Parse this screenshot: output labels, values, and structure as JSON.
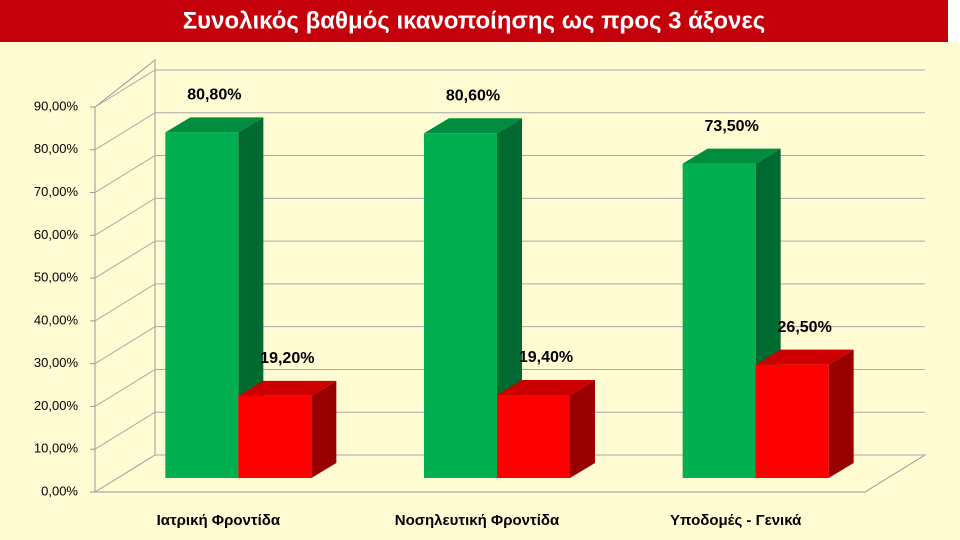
{
  "chart_data": {
    "type": "bar3d",
    "title": "Συνολικός βαθμός ικανοποίησης ως προς 3 άξονες",
    "categories": [
      "Ιατρική Φροντίδα",
      "Νοσηλευτική Φροντίδα",
      "Υποδομές - Γενικά"
    ],
    "series": [
      {
        "color": "#00b050",
        "values": [
          80.8,
          80.6,
          73.5
        ],
        "value_labels": [
          "80,80%",
          "80,60%",
          "73,50%"
        ]
      },
      {
        "color": "#ff0000",
        "values": [
          19.2,
          19.4,
          26.5
        ],
        "value_labels": [
          "19,20%",
          "19,40%",
          "26,50%"
        ]
      }
    ],
    "ylim": [
      0,
      90
    ],
    "yticks": [
      {
        "value": 0,
        "label": "0,00%"
      },
      {
        "value": 10,
        "label": "10,00%"
      },
      {
        "value": 20,
        "label": "20,00%"
      },
      {
        "value": 30,
        "label": "30,00%"
      },
      {
        "value": 40,
        "label": "40,00%"
      },
      {
        "value": 50,
        "label": "50,00%"
      },
      {
        "value": 60,
        "label": "60,00%"
      },
      {
        "value": 70,
        "label": "70,00%"
      },
      {
        "value": 80,
        "label": "80,00%"
      },
      {
        "value": 90,
        "label": "90,00%"
      }
    ],
    "grid": true
  }
}
